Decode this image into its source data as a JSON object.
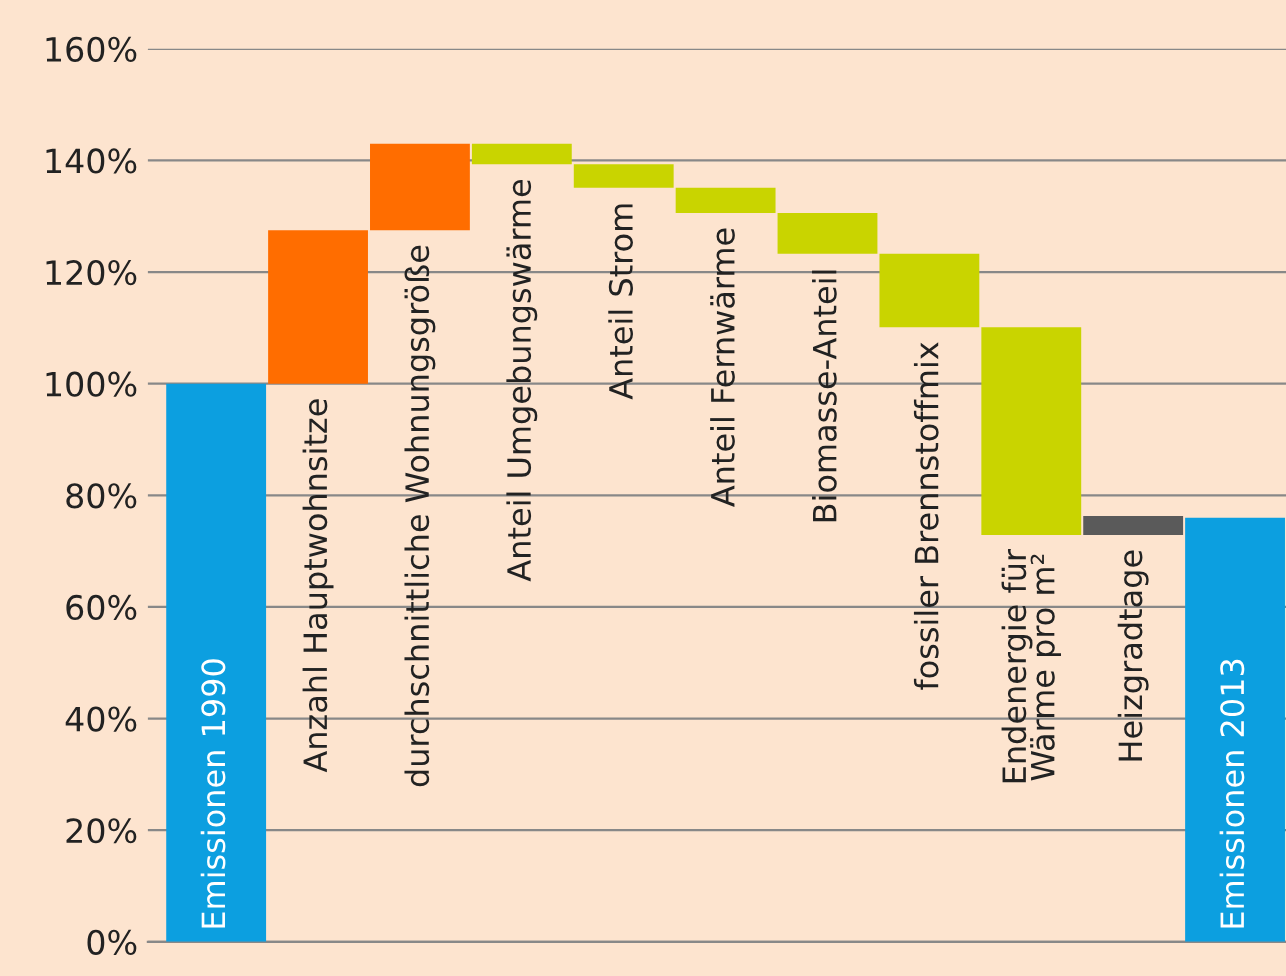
{
  "chart_data": {
    "type": "bar",
    "categories": [
      "Emissionen 1990",
      "Anzahl Hauptwohnsitze",
      "durchschnittliche Wohnungsgröße",
      "Anteil Umgebungswärme",
      "Anteil Strom",
      "Anteil Fernwärme",
      "Biomasse-Anteil",
      "fossiler Brennstoffmix",
      "Endenergie für\nWärme pro m²",
      "Heizgradtage",
      "Emissionen 2013"
    ],
    "base": [
      0,
      100,
      127.5,
      143,
      139.3,
      135.1,
      130.6,
      123.3,
      110.1,
      72.9,
      0
    ],
    "values": [
      100,
      27.5,
      15.5,
      -3.7,
      -4.2,
      -4.5,
      -7.3,
      -13.2,
      -37.2,
      3.4,
      76
    ],
    "colors": [
      "#0c9fe0",
      "#ff6d00",
      "#ff6d00",
      "#c9d400",
      "#c9d400",
      "#c9d400",
      "#c9d400",
      "#c9d400",
      "#c9d400",
      "#5a5a5a",
      "#0c9fe0"
    ],
    "ylim": [
      0,
      160
    ],
    "yticks": [
      {
        "value": 0,
        "label": "0%"
      },
      {
        "value": 20,
        "label": "20%"
      },
      {
        "value": 40,
        "label": "40%"
      },
      {
        "value": 60,
        "label": "60%"
      },
      {
        "value": 80,
        "label": "80%"
      },
      {
        "value": 100,
        "label": "100%"
      },
      {
        "value": 120,
        "label": "120%"
      },
      {
        "value": 140,
        "label": "140%"
      },
      {
        "value": 160,
        "label": "160%"
      }
    ],
    "grid": "y"
  }
}
